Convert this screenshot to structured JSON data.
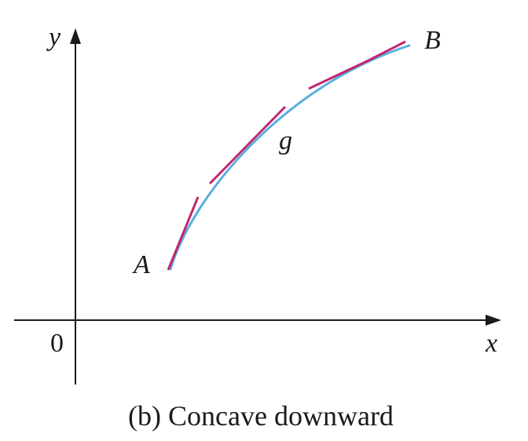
{
  "figure": {
    "axis_x_label": "x",
    "axis_y_label": "y",
    "origin_label": "0",
    "point_a_label": "A",
    "point_b_label": "B",
    "function_label": "g",
    "caption": "(b) Concave downward"
  },
  "colors": {
    "curve": "#5aaedf",
    "tangent_lines": "#c2266f",
    "axes": "#1a1a1a",
    "background": "#ffffff"
  }
}
